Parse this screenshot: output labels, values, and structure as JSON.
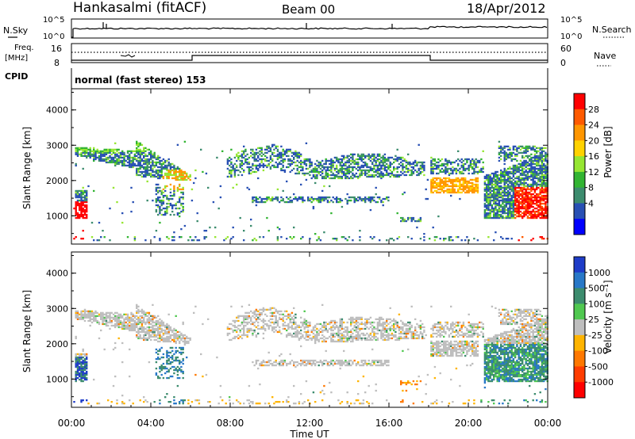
{
  "header": {
    "station": "Hankasalmi (fitACF)",
    "beam": "Beam 00",
    "date": "18/Apr/2012"
  },
  "param_panels": {
    "nsky_label": "N.Sky",
    "nsky_ticks": [
      "10^5",
      "10^0"
    ],
    "nsearch_label": "N.Search",
    "nsearch_ticks": [
      "10^5",
      "10^0"
    ],
    "freq_label": "Freq.",
    "freq_unit": "[MHz]",
    "freq_ticks": [
      "16",
      "8"
    ],
    "nave_label": "Nave",
    "nave_ticks": [
      "60",
      "0"
    ],
    "cpid_label": "CPID",
    "cpid_text": "normal (fast stereo) 153"
  },
  "chart_data": [
    {
      "type": "heatmap",
      "name": "power",
      "ylabel": "Slant Range [km]",
      "xlabel": "Time UT",
      "ylim": [
        200,
        4600
      ],
      "yticks": [
        "4000",
        "3000",
        "2000",
        "1000"
      ],
      "colorbar_label": "Power [dB]",
      "colorbar_ticks": [
        "28",
        "24",
        "20",
        "16",
        "12",
        "8",
        "4"
      ],
      "colorbar_colors": [
        "#ff0000",
        "#ff5a00",
        "#ff9600",
        "#ffd200",
        "#96e632",
        "#32b432",
        "#3c8c6e",
        "#2850b4",
        "#0000ff"
      ]
    },
    {
      "type": "heatmap",
      "name": "velocity",
      "ylabel": "Slant Range [km]",
      "xlabel": "Time UT",
      "ylim": [
        200,
        4600
      ],
      "yticks": [
        "4000",
        "3000",
        "2000",
        "1000"
      ],
      "colorbar_label": "Velocity [m s⁻¹]",
      "colorbar_ticks": [
        "1000",
        "500",
        "100",
        "25",
        "-25",
        "-100",
        "-500",
        "-1000"
      ],
      "colorbar_colors": [
        "#1e3cc8",
        "#2878c8",
        "#3c8c6e",
        "#50c850",
        "#bebebe",
        "#ffb400",
        "#ff7800",
        "#ff3c00",
        "#ff0000"
      ]
    }
  ],
  "xaxis": {
    "ticks": [
      "00:00",
      "04:00",
      "08:00",
      "12:00",
      "16:00",
      "20:00",
      "00:00"
    ],
    "label": "Time UT"
  }
}
